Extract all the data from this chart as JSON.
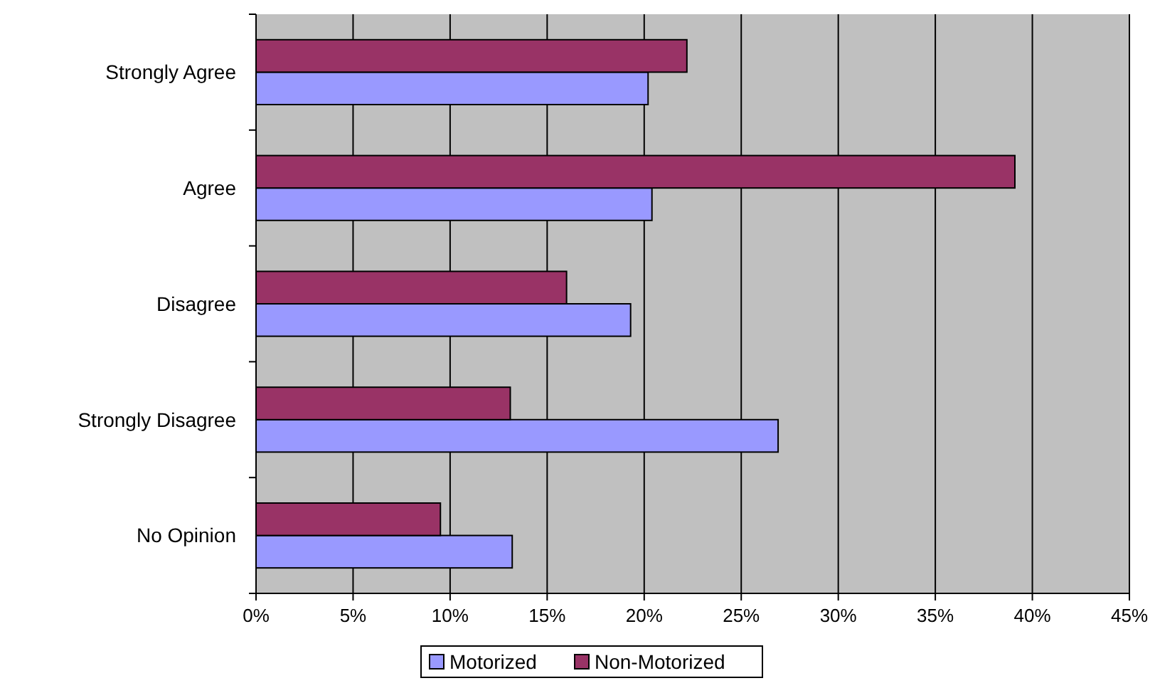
{
  "chart_data": {
    "type": "bar",
    "orientation": "horizontal",
    "categories": [
      "Strongly Agree",
      "Agree",
      "Disagree",
      "Strongly Disagree",
      "No Opinion"
    ],
    "series": [
      {
        "name": "Motorized",
        "color": "#9999ff",
        "values": [
          20.2,
          20.4,
          19.3,
          26.9,
          13.2
        ]
      },
      {
        "name": "Non-Motorized",
        "color": "#993366",
        "values": [
          22.2,
          39.1,
          16.0,
          13.1,
          9.5
        ]
      }
    ],
    "xlim": [
      0,
      45
    ],
    "xticks": [
      {
        "value": 0,
        "label": "0%"
      },
      {
        "value": 5,
        "label": "5%"
      },
      {
        "value": 10,
        "label": "10%"
      },
      {
        "value": 15,
        "label": "15%"
      },
      {
        "value": 20,
        "label": "20%"
      },
      {
        "value": 25,
        "label": "25%"
      },
      {
        "value": 30,
        "label": "30%"
      },
      {
        "value": 35,
        "label": "35%"
      },
      {
        "value": 40,
        "label": "40%"
      },
      {
        "value": 45,
        "label": "45%"
      }
    ],
    "grid": "x",
    "legend": "bottom"
  }
}
